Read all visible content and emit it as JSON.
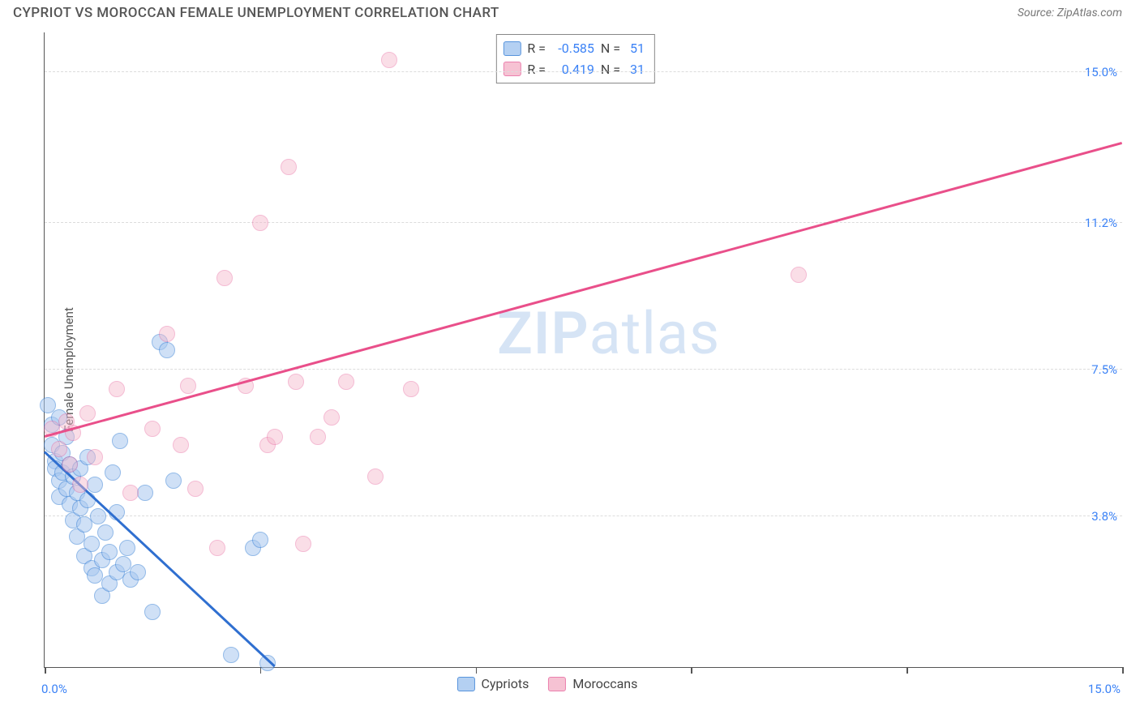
{
  "title": "CYPRIOT VS MOROCCAN FEMALE UNEMPLOYMENT CORRELATION CHART",
  "source": "Source: ZipAtlas.com",
  "ylabel": "Female Unemployment",
  "watermark": {
    "zip": "ZIP",
    "atlas": "atlas",
    "color": "#d6e4f5"
  },
  "chart": {
    "type": "scatter",
    "xlim": [
      0.0,
      15.0
    ],
    "ylim": [
      0.0,
      16.0
    ],
    "x_ticks": [
      0.0,
      3.0,
      6.0,
      9.0,
      12.0,
      15.0
    ],
    "x_label_min": "0.0%",
    "x_label_max": "15.0%",
    "y_gridlines": [
      {
        "value": 3.8,
        "label": "3.8%"
      },
      {
        "value": 7.5,
        "label": "7.5%"
      },
      {
        "value": 11.2,
        "label": "11.2%"
      },
      {
        "value": 15.0,
        "label": "15.0%"
      }
    ],
    "background_color": "#ffffff",
    "grid_color": "#dcdcdc",
    "axis_color": "#555555",
    "marker_radius": 10,
    "marker_border_width": 1.5,
    "series": [
      {
        "name": "Cypriots",
        "fill": "#a8c8f0",
        "stroke": "#3b82d6",
        "fill_opacity": 0.55,
        "R": "-0.585",
        "N": "51",
        "trend": {
          "x1": 0.0,
          "y1": 5.4,
          "x2": 3.2,
          "y2": 0.0,
          "color": "#2f6fd0",
          "width": 2.5
        },
        "points": [
          [
            0.05,
            6.6
          ],
          [
            0.1,
            6.1
          ],
          [
            0.1,
            5.6
          ],
          [
            0.15,
            5.2
          ],
          [
            0.15,
            5.0
          ],
          [
            0.2,
            4.7
          ],
          [
            0.2,
            4.3
          ],
          [
            0.2,
            6.3
          ],
          [
            0.25,
            5.4
          ],
          [
            0.25,
            4.9
          ],
          [
            0.3,
            5.8
          ],
          [
            0.3,
            4.5
          ],
          [
            0.35,
            5.1
          ],
          [
            0.35,
            4.1
          ],
          [
            0.4,
            4.8
          ],
          [
            0.4,
            3.7
          ],
          [
            0.45,
            4.4
          ],
          [
            0.45,
            3.3
          ],
          [
            0.5,
            5.0
          ],
          [
            0.5,
            4.0
          ],
          [
            0.55,
            3.6
          ],
          [
            0.55,
            2.8
          ],
          [
            0.6,
            5.3
          ],
          [
            0.6,
            4.2
          ],
          [
            0.65,
            3.1
          ],
          [
            0.65,
            2.5
          ],
          [
            0.7,
            2.3
          ],
          [
            0.7,
            4.6
          ],
          [
            0.75,
            3.8
          ],
          [
            0.8,
            2.7
          ],
          [
            0.8,
            1.8
          ],
          [
            0.85,
            3.4
          ],
          [
            0.9,
            2.1
          ],
          [
            0.9,
            2.9
          ],
          [
            0.95,
            4.9
          ],
          [
            1.0,
            3.9
          ],
          [
            1.0,
            2.4
          ],
          [
            1.05,
            5.7
          ],
          [
            1.1,
            2.6
          ],
          [
            1.15,
            3.0
          ],
          [
            1.2,
            2.2
          ],
          [
            1.3,
            2.4
          ],
          [
            1.4,
            4.4
          ],
          [
            1.5,
            1.4
          ],
          [
            1.6,
            8.2
          ],
          [
            1.7,
            8.0
          ],
          [
            1.8,
            4.7
          ],
          [
            2.6,
            0.3
          ],
          [
            2.9,
            3.0
          ],
          [
            3.0,
            3.2
          ],
          [
            3.1,
            0.1
          ]
        ]
      },
      {
        "name": "Moroccans",
        "fill": "#f5b8cc",
        "stroke": "#e86aa0",
        "fill_opacity": 0.45,
        "R": "0.419",
        "N": "31",
        "trend": {
          "x1": 0.0,
          "y1": 5.8,
          "x2": 15.0,
          "y2": 13.2,
          "color": "#e94f8a",
          "width": 2.5
        },
        "points": [
          [
            0.1,
            6.0
          ],
          [
            0.2,
            5.5
          ],
          [
            0.3,
            6.2
          ],
          [
            0.35,
            5.1
          ],
          [
            0.4,
            5.9
          ],
          [
            0.5,
            4.6
          ],
          [
            0.6,
            6.4
          ],
          [
            0.7,
            5.3
          ],
          [
            1.0,
            7.0
          ],
          [
            1.2,
            4.4
          ],
          [
            1.5,
            6.0
          ],
          [
            1.7,
            8.4
          ],
          [
            1.9,
            5.6
          ],
          [
            2.0,
            7.1
          ],
          [
            2.1,
            4.5
          ],
          [
            2.4,
            3.0
          ],
          [
            2.5,
            9.8
          ],
          [
            2.8,
            7.1
          ],
          [
            3.0,
            11.2
          ],
          [
            3.1,
            5.6
          ],
          [
            3.2,
            5.8
          ],
          [
            3.4,
            12.6
          ],
          [
            3.5,
            7.2
          ],
          [
            3.6,
            3.1
          ],
          [
            3.8,
            5.8
          ],
          [
            4.0,
            6.3
          ],
          [
            4.2,
            7.2
          ],
          [
            4.6,
            4.8
          ],
          [
            4.8,
            15.3
          ],
          [
            5.1,
            7.0
          ],
          [
            10.5,
            9.9
          ]
        ]
      }
    ]
  },
  "legend_bottom": [
    {
      "label": "Cypriots",
      "fill": "#a8c8f0",
      "stroke": "#3b82d6"
    },
    {
      "label": "Moroccans",
      "fill": "#f5b8cc",
      "stroke": "#e86aa0"
    }
  ]
}
